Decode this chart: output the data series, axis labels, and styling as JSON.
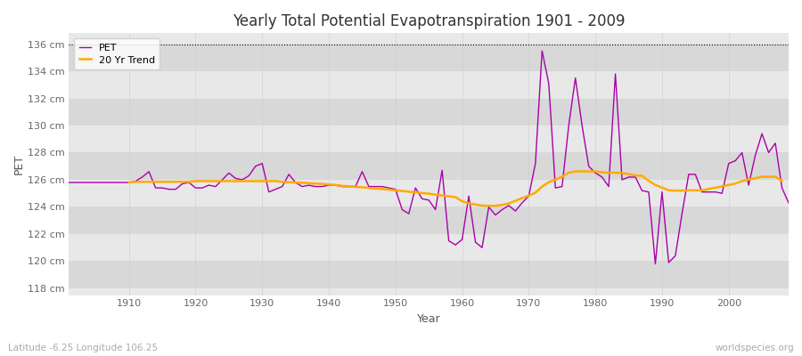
{
  "title": "Yearly Total Potential Evapotranspiration 1901 - 2009",
  "xlabel": "Year",
  "ylabel": "PET",
  "bottom_left_label": "Latitude -6.25 Longitude 106.25",
  "bottom_right_label": "worldspecies.org",
  "pet_color": "#aa00aa",
  "trend_color": "#ffaa00",
  "fig_bg_color": "#ffffff",
  "plot_bg_color": "#e8e8e8",
  "ylim": [
    117.5,
    136.8
  ],
  "yticks": [
    118,
    120,
    122,
    124,
    126,
    128,
    130,
    132,
    134,
    136
  ],
  "ytick_labels": [
    "118 cm",
    "120 cm",
    "122 cm",
    "124 cm",
    "126 cm",
    "128 cm",
    "130 cm",
    "132 cm",
    "134 cm",
    "136 cm"
  ],
  "xlim": [
    1901,
    2009
  ],
  "xticks": [
    1910,
    1920,
    1930,
    1940,
    1950,
    1960,
    1970,
    1980,
    1990,
    2000
  ],
  "years": [
    1901,
    1902,
    1903,
    1904,
    1905,
    1906,
    1907,
    1908,
    1909,
    1910,
    1911,
    1912,
    1913,
    1914,
    1915,
    1916,
    1917,
    1918,
    1919,
    1920,
    1921,
    1922,
    1923,
    1924,
    1925,
    1926,
    1927,
    1928,
    1929,
    1930,
    1931,
    1932,
    1933,
    1934,
    1935,
    1936,
    1937,
    1938,
    1939,
    1940,
    1941,
    1942,
    1943,
    1944,
    1945,
    1946,
    1947,
    1948,
    1949,
    1950,
    1951,
    1952,
    1953,
    1954,
    1955,
    1956,
    1957,
    1958,
    1959,
    1960,
    1961,
    1962,
    1963,
    1964,
    1965,
    1966,
    1967,
    1968,
    1969,
    1970,
    1971,
    1972,
    1973,
    1974,
    1975,
    1976,
    1977,
    1978,
    1979,
    1980,
    1981,
    1982,
    1983,
    1984,
    1985,
    1986,
    1987,
    1988,
    1989,
    1990,
    1991,
    1992,
    1993,
    1994,
    1995,
    1996,
    1997,
    1998,
    1999,
    2000,
    2001,
    2002,
    2003,
    2004,
    2005,
    2006,
    2007,
    2008,
    2009
  ],
  "pet_values": [
    125.8,
    125.8,
    125.8,
    125.8,
    125.8,
    125.8,
    125.8,
    125.8,
    125.8,
    125.8,
    125.9,
    126.2,
    126.6,
    125.4,
    125.4,
    125.3,
    125.3,
    125.7,
    125.8,
    125.4,
    125.4,
    125.6,
    125.5,
    126.0,
    126.5,
    126.1,
    126.0,
    126.3,
    127.0,
    127.2,
    125.1,
    125.3,
    125.5,
    126.4,
    125.8,
    125.5,
    125.6,
    125.5,
    125.5,
    125.6,
    125.6,
    125.5,
    125.5,
    125.5,
    126.6,
    125.5,
    125.5,
    125.5,
    125.4,
    125.3,
    123.8,
    123.5,
    125.4,
    124.6,
    124.5,
    123.8,
    126.7,
    121.5,
    121.2,
    121.6,
    124.8,
    121.4,
    121.0,
    124.0,
    123.4,
    123.8,
    124.1,
    123.7,
    124.3,
    124.8,
    127.2,
    135.5,
    133.1,
    125.4,
    125.5,
    130.0,
    133.5,
    130.0,
    127.0,
    126.5,
    126.2,
    125.5,
    133.8,
    126.0,
    126.2,
    126.2,
    125.2,
    125.1,
    119.8,
    125.1,
    119.9,
    120.4,
    123.5,
    126.4,
    126.4,
    125.1,
    125.1,
    125.1,
    125.0,
    127.2,
    127.4,
    128.0,
    125.6,
    127.8,
    129.4,
    128.0,
    128.7,
    125.4,
    124.3
  ],
  "trend_values": [
    null,
    null,
    null,
    null,
    null,
    null,
    null,
    null,
    null,
    125.8,
    125.85,
    125.85,
    125.85,
    125.85,
    125.85,
    125.85,
    125.85,
    125.85,
    125.85,
    125.9,
    125.9,
    125.9,
    125.9,
    125.9,
    125.9,
    125.9,
    125.9,
    125.9,
    125.9,
    125.9,
    125.9,
    125.9,
    125.85,
    125.82,
    125.8,
    125.78,
    125.75,
    125.72,
    125.7,
    125.65,
    125.62,
    125.55,
    125.52,
    125.48,
    125.45,
    125.4,
    125.35,
    125.32,
    125.28,
    125.22,
    125.18,
    125.12,
    125.08,
    125.02,
    124.98,
    124.9,
    124.85,
    124.78,
    124.72,
    124.42,
    124.25,
    124.18,
    124.1,
    124.08,
    124.08,
    124.15,
    124.25,
    124.45,
    124.65,
    124.82,
    125.05,
    125.5,
    125.82,
    126.02,
    126.22,
    126.52,
    126.62,
    126.62,
    126.62,
    126.62,
    126.55,
    126.52,
    126.52,
    126.5,
    126.42,
    126.32,
    126.3,
    125.92,
    125.62,
    125.42,
    125.22,
    125.2,
    125.2,
    125.22,
    125.22,
    125.22,
    125.32,
    125.42,
    125.52,
    125.62,
    125.72,
    125.9,
    126.02,
    126.12,
    126.22,
    126.22,
    126.22,
    125.92,
    null
  ]
}
